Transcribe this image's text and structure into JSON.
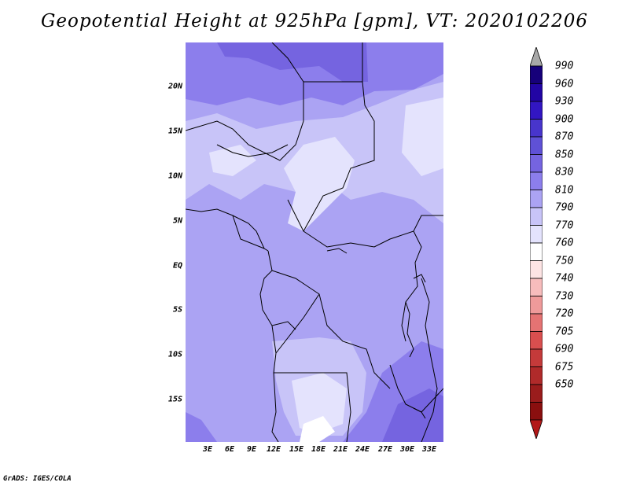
{
  "title": "Geopotential Height at 925hPa [gpm], VT: 2020102206",
  "credit": "GrADS: IGES/COLA",
  "map": {
    "y_ticks": [
      "20N",
      "15N",
      "10N",
      "5N",
      "EQ",
      "5S",
      "10S",
      "15S"
    ],
    "x_ticks": [
      "3E",
      "6E",
      "9E",
      "12E",
      "15E",
      "18E",
      "21E",
      "24E",
      "27E",
      "30E",
      "33E"
    ]
  },
  "colorbar": {
    "labels": [
      "990",
      "960",
      "930",
      "900",
      "870",
      "850",
      "830",
      "810",
      "790",
      "770",
      "760",
      "750",
      "740",
      "730",
      "720",
      "705",
      "690",
      "675",
      "650"
    ],
    "colors": [
      "#16007a",
      "#2205a4",
      "#3216c2",
      "#4835cc",
      "#5f51d6",
      "#7564e0",
      "#8c7eec",
      "#aba3f3",
      "#c8c4f8",
      "#e4e3fd",
      "#ffffff",
      "#fde4e4",
      "#f7bcbc",
      "#ef9a9a",
      "#e57373",
      "#d94f4f",
      "#c43a3a",
      "#b02a2a",
      "#9a1c1c",
      "#8a0f0f"
    ],
    "top_arrow_color": "#a8a8a8",
    "bottom_arrow_color": "#b21818"
  }
}
